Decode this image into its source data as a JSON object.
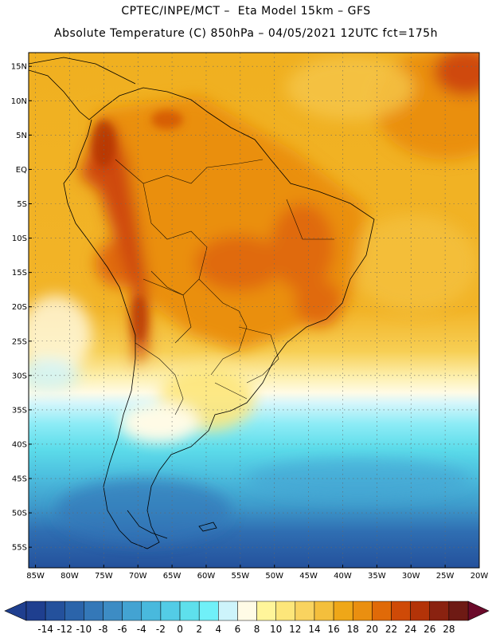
{
  "header": {
    "line1": "CPTEC/INPE/MCT –  Eta Model 15km – GFS",
    "line2": "Absolute Temperature (C) 850hPa – 04/05/2021 12UTC fct=175h"
  },
  "map": {
    "lat_labels": [
      "15N",
      "10N",
      "5N",
      "EQ",
      "5S",
      "10S",
      "15S",
      "20S",
      "25S",
      "30S",
      "35S",
      "40S",
      "45S",
      "50S",
      "55S"
    ],
    "lat_values": [
      15,
      10,
      5,
      0,
      -5,
      -10,
      -15,
      -20,
      -25,
      -30,
      -35,
      -40,
      -45,
      -50,
      -55
    ],
    "lon_labels": [
      "85W",
      "80W",
      "75W",
      "70W",
      "65W",
      "60W",
      "55W",
      "50W",
      "45W",
      "40W",
      "35W",
      "30W",
      "25W",
      "20W"
    ],
    "lon_values": [
      -85,
      -80,
      -75,
      -70,
      -65,
      -60,
      -55,
      -50,
      -45,
      -40,
      -35,
      -30,
      -25,
      -20
    ],
    "lon_range": [
      -86,
      -20
    ],
    "lat_range": [
      -58,
      17
    ]
  },
  "colorbar": {
    "labels": [
      "-14",
      "-12",
      "-10",
      "-8",
      "-6",
      "-4",
      "-2",
      "0",
      "2",
      "4",
      "6",
      "8",
      "10",
      "12",
      "14",
      "16",
      "18",
      "20",
      "22",
      "24",
      "26",
      "28"
    ],
    "colors": [
      "#1f3f8f",
      "#24519c",
      "#2b64aa",
      "#3478b8",
      "#3d8cc4",
      "#43a3d2",
      "#49b9dd",
      "#53cce6",
      "#5ee0ec",
      "#70f0f8",
      "#cdf4fb",
      "#fffbe6",
      "#fff59a",
      "#fde67a",
      "#f9d35f",
      "#f4bf3c",
      "#efa718",
      "#ea8f10",
      "#e06a08",
      "#cf4a07",
      "#b33308",
      "#8a2210",
      "#6e1a14"
    ]
  }
}
